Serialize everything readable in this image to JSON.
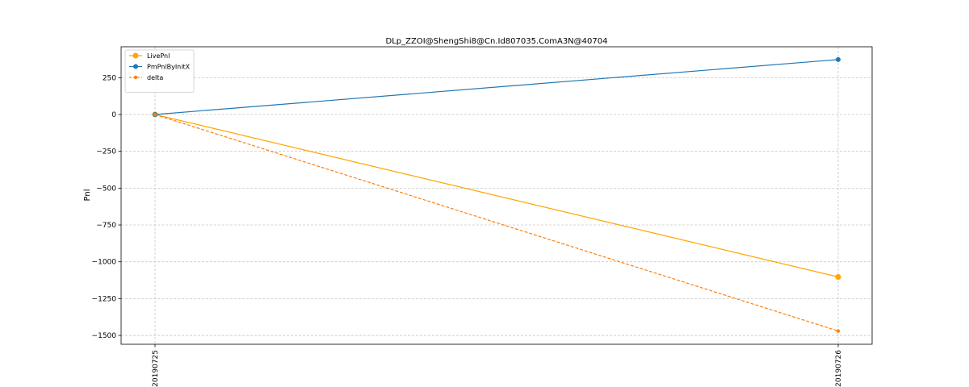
{
  "chart_data": {
    "type": "line",
    "title": "DLp_ZZOI@ShengShi8@Cn.Id807035.ComA3N@40704",
    "xlabel": "",
    "ylabel": "Pnl",
    "categories": [
      "20190725",
      "20190726"
    ],
    "ylim": [
      -1560,
      460
    ],
    "yticks": [
      250,
      0,
      -250,
      -500,
      -750,
      -1000,
      -1250,
      -1500
    ],
    "ytick_labels": [
      "250",
      "0",
      "−250",
      "−500",
      "−750",
      "−1000",
      "−1250",
      "−1500"
    ],
    "grid": true,
    "legend_position": "top-left",
    "series": [
      {
        "name": "LivePnl",
        "values": [
          0,
          -1103
        ],
        "color": "#ffa500",
        "style": "solid",
        "marker": "large-circle"
      },
      {
        "name": "PmPnlByInitX",
        "values": [
          0,
          373
        ],
        "color": "#1f77b4",
        "style": "solid",
        "marker": "circle"
      },
      {
        "name": "delta",
        "values": [
          0,
          -1470
        ],
        "color": "#ff7f0e",
        "style": "dashed",
        "marker": "small-circle"
      }
    ]
  }
}
